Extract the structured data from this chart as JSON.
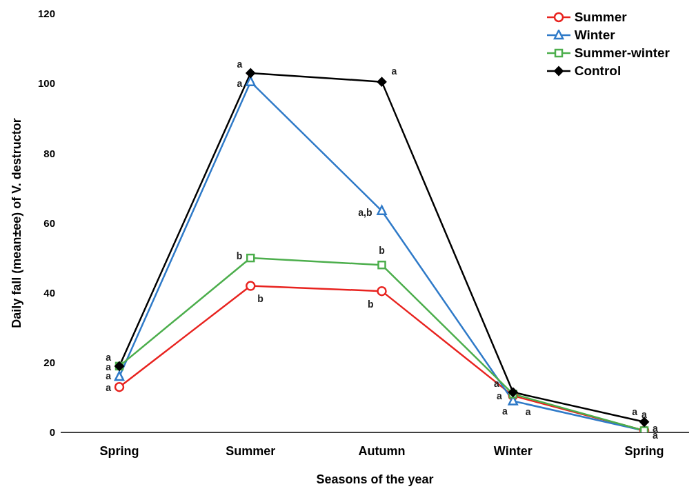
{
  "chart_data": {
    "type": "line",
    "xlabel": "Seasons of the year",
    "ylabel": "Daily fall (mean±ee) of V. destructor",
    "categories": [
      "Spring",
      "Summer",
      "Autumn",
      "Winter",
      "Spring"
    ],
    "ylim": [
      0,
      120
    ],
    "yticks": [
      0,
      20,
      40,
      60,
      80,
      100,
      120
    ],
    "grid": false,
    "legend": "top right",
    "series": [
      {
        "name": "Summer",
        "color": "#e8231f",
        "marker": "circle",
        "values": [
          13,
          42,
          40.5,
          10.5,
          0.5
        ],
        "value_labels": [
          "a",
          "b",
          "b",
          "a",
          "a"
        ]
      },
      {
        "name": "Winter",
        "color": "#2f7ac8",
        "marker": "triangle",
        "values": [
          16,
          100.5,
          63.5,
          9,
          0.5
        ],
        "value_labels": [
          "a",
          "a",
          "a,b",
          "a",
          "a"
        ]
      },
      {
        "name": "Summer-winter",
        "color": "#4cae4c",
        "marker": "square",
        "values": [
          19,
          50,
          48,
          11,
          0.5
        ],
        "value_labels": [
          "a",
          "b",
          "b",
          "a",
          "a"
        ]
      },
      {
        "name": "Control",
        "color": "#000000",
        "marker": "diamond",
        "values": [
          19,
          103,
          100.5,
          11.5,
          3
        ],
        "value_labels": [
          "a",
          "a",
          "a",
          "a",
          "a"
        ]
      }
    ]
  }
}
